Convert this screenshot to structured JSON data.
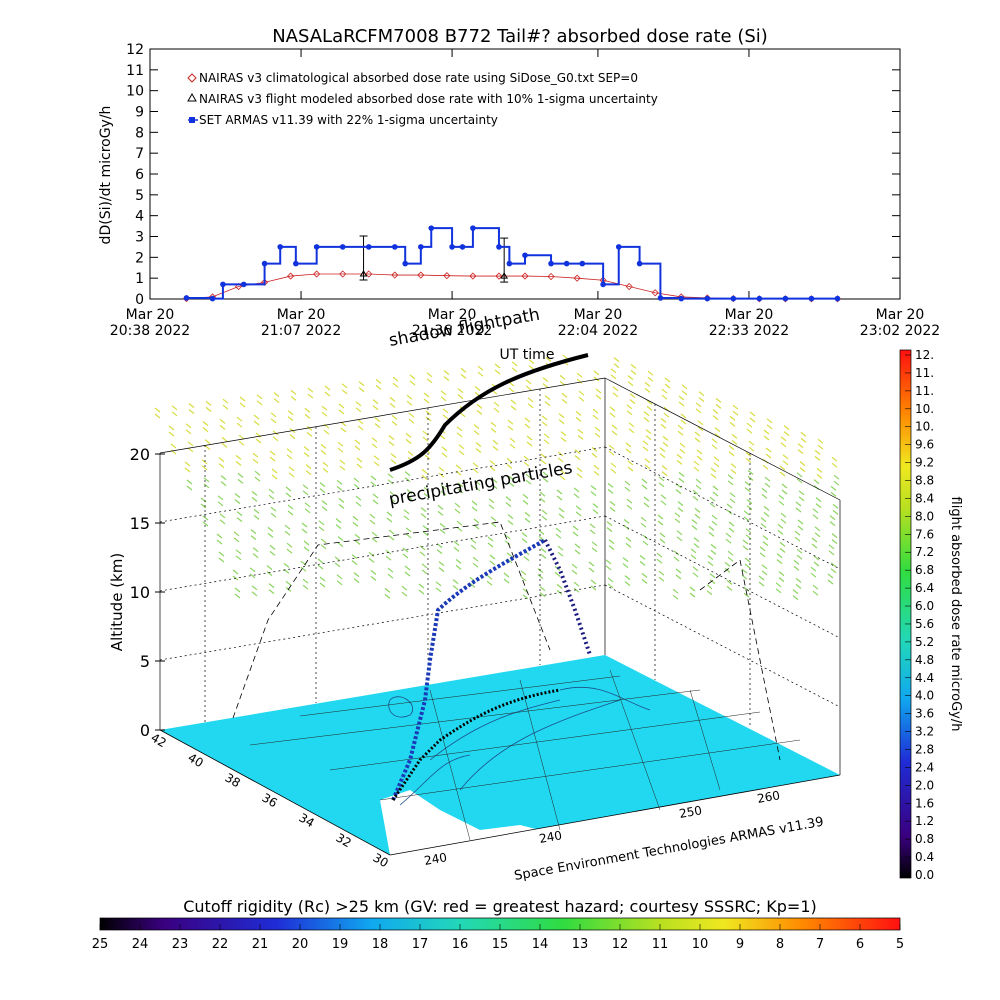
{
  "title": "NASALaRCFM7008  B772 Tail#? absorbed dose rate (Si)",
  "chart_data": [
    {
      "type": "line",
      "ylabel": "dD(Si)/dt microGy/h",
      "xlabel": "UT time",
      "ylim": [
        0,
        12
      ],
      "y_ticks": [
        "0",
        "1",
        "2",
        "3",
        "4",
        "5",
        "6",
        "7",
        "8",
        "9",
        "10",
        "11",
        "12"
      ],
      "x_ticks": [
        {
          "date": "Mar 20",
          "time": "20:38 2022"
        },
        {
          "date": "Mar 20",
          "time": "21:07 2022"
        },
        {
          "date": "Mar 20",
          "time": "21:36 2022"
        },
        {
          "date": "Mar 20",
          "time": "22:04 2022"
        },
        {
          "date": "Mar 20",
          "time": "22:33 2022"
        },
        {
          "date": "Mar 20",
          "time": "23:02 2022"
        }
      ],
      "legend_placement": "top-left",
      "series": [
        {
          "name": "NAIRAS v3 climatological absorbed dose rate using SiDose_G0.txt SEP=0",
          "color": "#cc2222",
          "marker": "diamond",
          "x": [
            "20:45",
            "20:50",
            "20:55",
            "21:00",
            "21:05",
            "21:10",
            "21:15",
            "21:20",
            "21:25",
            "21:30",
            "21:35",
            "21:40",
            "21:45",
            "21:50",
            "21:55",
            "22:00",
            "22:05",
            "22:10",
            "22:15",
            "22:20",
            "22:25",
            "22:30",
            "22:35",
            "22:40",
            "22:45",
            "22:50"
          ],
          "values": [
            0.02,
            0.1,
            0.6,
            0.8,
            1.1,
            1.2,
            1.2,
            1.2,
            1.15,
            1.15,
            1.12,
            1.1,
            1.1,
            1.1,
            1.08,
            1.0,
            0.9,
            0.6,
            0.3,
            0.1,
            0.05,
            0.02,
            0.01,
            0.01,
            0.01,
            0.01
          ]
        },
        {
          "name": "NAIRAS v3 flight modeled absorbed dose rate with 10% 1-sigma uncertainty",
          "color": "#000000",
          "marker": "triangle",
          "x": [
            "21:19",
            "21:46"
          ],
          "values": [
            1.2,
            1.1
          ]
        },
        {
          "name": "SET ARMAS v11.39 with 22% 1-sigma uncertainty",
          "color": "#1133dd",
          "marker": "square",
          "x": [
            "20:45",
            "20:50",
            "20:52",
            "20:56",
            "21:00",
            "21:03",
            "21:06",
            "21:10",
            "21:15",
            "21:20",
            "21:25",
            "21:27",
            "21:30",
            "21:32",
            "21:36",
            "21:38",
            "21:40",
            "21:45",
            "21:47",
            "21:50",
            "21:55",
            "21:58",
            "22:01",
            "22:05",
            "22:08",
            "22:12",
            "22:16",
            "22:20",
            "22:25",
            "22:30",
            "22:35",
            "22:40",
            "22:45",
            "22:50"
          ],
          "values": [
            0.05,
            0.02,
            0.7,
            0.7,
            1.7,
            2.5,
            1.7,
            2.5,
            2.5,
            2.5,
            2.5,
            1.7,
            2.5,
            3.4,
            2.5,
            2.5,
            3.4,
            2.5,
            1.7,
            2.1,
            1.7,
            1.7,
            1.7,
            0.7,
            2.5,
            1.7,
            0.05,
            0.02,
            0.02,
            0.02,
            0.02,
            0.02,
            0.02,
            0.02
          ]
        }
      ]
    },
    {
      "type": "scatter",
      "title": "",
      "ylabel": "Altitude (km)",
      "z_ticks": [
        "0",
        "5",
        "10",
        "15",
        "20"
      ],
      "lat_ticks": [
        "42",
        "40",
        "38",
        "36",
        "34",
        "32",
        "30"
      ],
      "lon_ticks": [
        "240",
        "240",
        "250",
        "260"
      ],
      "annotations": [
        "shadow flightpath",
        "precipitating particles"
      ],
      "footer": "Space Environment Technologies ARMAS v11.39",
      "colorbar": {
        "label": "flight absorbed dose rate microGy/h",
        "ticks": [
          "12.",
          "11.",
          "11.",
          "10.",
          "10.",
          "9.6",
          "9.2",
          "8.8",
          "8.4",
          "8.0",
          "7.6",
          "7.2",
          "6.8",
          "6.4",
          "6.0",
          "5.6",
          "5.2",
          "4.8",
          "4.4",
          "4.0",
          "3.6",
          "3.2",
          "2.8",
          "2.4",
          "2.0",
          "1.6",
          "1.2",
          "0.8",
          "0.4",
          "0.0"
        ]
      }
    },
    {
      "type": "heatmap",
      "title": "Cutoff rigidity (Rc) >25 km (GV: red = greatest hazard; courtesy SSSRC; Kp=1)",
      "ticks": [
        "25",
        "24",
        "23",
        "22",
        "21",
        "20",
        "19",
        "18",
        "17",
        "16",
        "15",
        "14",
        "13",
        "12",
        "11",
        "10",
        "9",
        "8",
        "7",
        "6",
        "5"
      ]
    }
  ]
}
